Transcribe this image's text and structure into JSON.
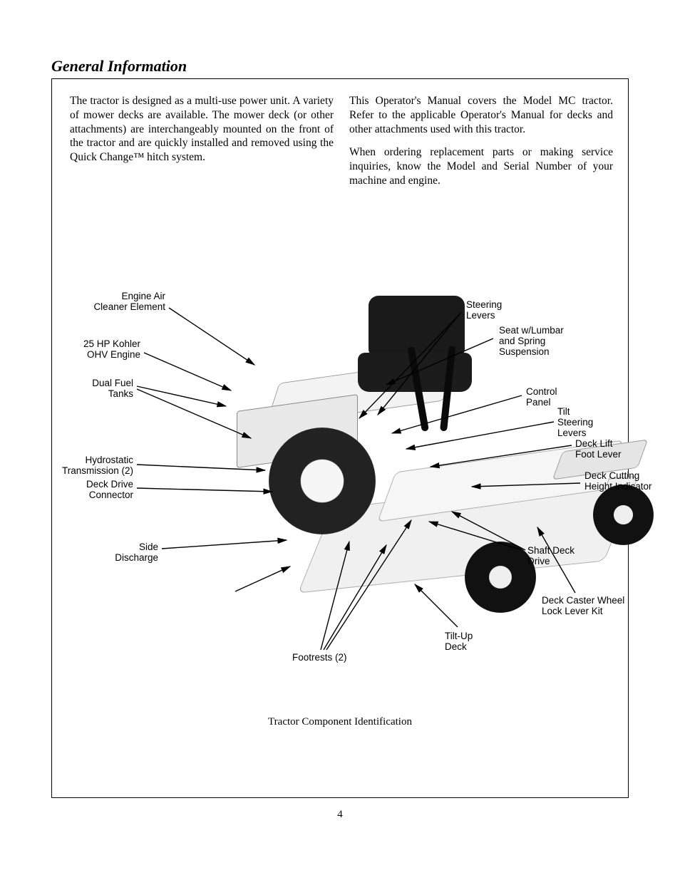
{
  "section_title": "General Information",
  "page_number": "4",
  "col_left": {
    "p1": "The tractor is designed as a multi-use power unit. A variety of mower decks are available. The mower deck (or other attachments) are interchangeably mounted on the front of the tractor and are quickly installed and removed using the Quick Change™ hitch system."
  },
  "col_right": {
    "p1": "This Operator's Manual covers the Model MC tractor. Refer to the applicable Operator's Manual for decks and other attachments used with this tractor.",
    "p2": "When ordering replacement parts or making service inquiries, know the Model and Serial Number of your machine and engine."
  },
  "figure_caption": "Tractor Component Identification",
  "callouts": {
    "engine_air": "Engine Air\nCleaner Element",
    "engine": "25 HP Kohler\nOHV Engine",
    "fuel_tanks": "Dual Fuel\nTanks",
    "hydro_trans": "Hydrostatic\nTransmission (2)",
    "deck_drive": "Deck Drive\nConnector",
    "discharge": "Side\nDischarge",
    "footrests": "Footrests (2)",
    "steering_levers": "Steering\nLevers",
    "seat": "Seat w/Lumbar\nand Spring\nSuspension",
    "control_panel": "Control\nPanel",
    "tilt_steer": "Tilt\nSteering\nLevers",
    "deck_lift": "Deck Lift\nFoot Lever",
    "deck_height": "Deck Cutting\nHeight Indicator",
    "shaft_drive": "Shaft Deck\nDrive",
    "caster_lock": "Deck Caster Wheel\nLock Lever Kit",
    "tilt_up": "Tilt-Up\nDeck"
  },
  "colors": {
    "text": "#000000",
    "bg": "#ffffff",
    "frame": "#000000"
  },
  "arrow": {
    "stroke": "#000000",
    "width": 1.4,
    "head": 10
  }
}
